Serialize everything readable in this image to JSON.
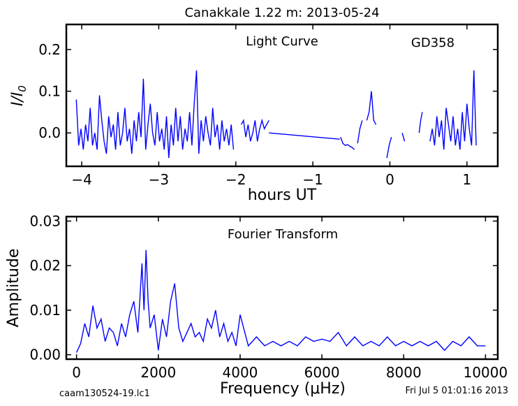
{
  "figure": {
    "title": "Canakkale 1.22 m:  2013-05-24",
    "footer_left": "caam130524-19.lc1",
    "footer_right": "Fri Jul  5 01:01:16 2013"
  },
  "colors": {
    "series": "#0000ff",
    "axes": "#000000",
    "background": "#ffffff"
  },
  "chart_data": [
    {
      "type": "line",
      "name": "light-curve",
      "annotation": "Light Curve",
      "star": "GD358",
      "xlabel": "hours UT",
      "ylabel": "I/I0",
      "xlim": [
        -4.2,
        1.4
      ],
      "ylim": [
        -0.08,
        0.26
      ],
      "xticks": [
        -4,
        -3,
        -2,
        -1,
        0,
        1
      ],
      "xtick_labels": [
        "−4",
        "−3",
        "−2",
        "−1",
        "0",
        "1"
      ],
      "yticks": [
        0.0,
        0.1,
        0.2
      ],
      "ytick_labels": [
        "0.0",
        "0.1",
        "0.2"
      ],
      "grid": false,
      "segments": [
        {
          "x": [
            -4.07,
            -4.04,
            -4.01,
            -3.98,
            -3.95,
            -3.92,
            -3.89,
            -3.86,
            -3.83,
            -3.8,
            -3.77,
            -3.74,
            -3.71,
            -3.68,
            -3.65,
            -3.62,
            -3.59,
            -3.56,
            -3.53,
            -3.5,
            -3.47,
            -3.44,
            -3.41,
            -3.38,
            -3.35,
            -3.32,
            -3.29,
            -3.26,
            -3.23,
            -3.2,
            -3.17,
            -3.14,
            -3.11,
            -3.08,
            -3.05,
            -3.02,
            -2.99,
            -2.96,
            -2.93,
            -2.9,
            -2.87,
            -2.84,
            -2.81,
            -2.78,
            -2.75,
            -2.72,
            -2.69,
            -2.66,
            -2.63,
            -2.6,
            -2.57,
            -2.54,
            -2.51,
            -2.48,
            -2.45,
            -2.42,
            -2.39,
            -2.36,
            -2.33,
            -2.3,
            -2.27,
            -2.24,
            -2.21,
            -2.18,
            -2.15,
            -2.12,
            -2.09,
            -2.06,
            -2.03
          ],
          "y": [
            0.08,
            -0.03,
            0.01,
            -0.04,
            0.02,
            -0.02,
            0.06,
            -0.03,
            0.0,
            -0.04,
            0.09,
            0.03,
            -0.02,
            -0.05,
            0.04,
            -0.01,
            0.02,
            -0.04,
            0.05,
            -0.03,
            0.0,
            0.06,
            -0.02,
            0.01,
            -0.05,
            0.03,
            -0.02,
            0.05,
            -0.01,
            0.13,
            -0.04,
            0.02,
            0.07,
            0.0,
            -0.03,
            0.05,
            -0.02,
            0.01,
            -0.04,
            0.04,
            -0.06,
            0.02,
            -0.03,
            0.06,
            -0.02,
            0.04,
            -0.04,
            0.01,
            -0.02,
            0.05,
            -0.03,
            0.07,
            0.15,
            -0.05,
            0.03,
            -0.02,
            0.04,
            0.0,
            -0.03,
            0.06,
            -0.01,
            0.02,
            -0.04,
            0.03,
            -0.02,
            0.01,
            -0.03,
            0.02,
            -0.04
          ]
        },
        {
          "x": [
            -1.93,
            -1.9,
            -1.87,
            -1.84,
            -1.81,
            -1.78,
            -1.75,
            -1.72,
            -1.69,
            -1.66,
            -1.63,
            -1.6,
            -1.57
          ],
          "y": [
            0.02,
            0.03,
            -0.01,
            0.02,
            -0.02,
            0.0,
            0.03,
            -0.02,
            0.01,
            0.03,
            0.01,
            0.02,
            0.03
          ]
        },
        {
          "x": [
            -1.57,
            -0.65
          ],
          "y": [
            0.0,
            -0.015
          ]
        },
        {
          "x": [
            -0.64,
            -0.61,
            -0.58,
            -0.55,
            -0.52,
            -0.49,
            -0.46
          ],
          "y": [
            -0.01,
            -0.025,
            -0.03,
            -0.028,
            -0.032,
            -0.035,
            -0.04
          ]
        },
        {
          "x": [
            -0.42,
            -0.39,
            -0.36
          ],
          "y": [
            -0.025,
            0.01,
            0.03
          ]
        },
        {
          "x": [
            -0.3,
            -0.27,
            -0.24,
            -0.21,
            -0.18
          ],
          "y": [
            0.03,
            0.05,
            0.1,
            0.03,
            0.02
          ]
        },
        {
          "x": [
            -0.04,
            -0.01,
            0.02
          ],
          "y": [
            -0.06,
            -0.03,
            -0.01
          ]
        },
        {
          "x": [
            0.16,
            0.19
          ],
          "y": [
            0.0,
            -0.02
          ]
        },
        {
          "x": [
            0.38,
            0.4,
            0.42
          ],
          "y": [
            0.0,
            0.03,
            0.05
          ]
        },
        {
          "x": [
            0.52,
            0.55,
            0.58,
            0.61,
            0.64,
            0.67,
            0.7,
            0.73,
            0.76,
            0.79,
            0.82,
            0.85,
            0.88,
            0.91,
            0.94,
            0.97,
            1.0,
            1.03,
            1.06,
            1.09,
            1.12
          ],
          "y": [
            -0.02,
            0.01,
            -0.03,
            0.04,
            -0.01,
            0.03,
            -0.04,
            0.06,
            0.02,
            -0.02,
            0.04,
            -0.03,
            0.01,
            -0.04,
            0.05,
            -0.02,
            0.07,
            0.01,
            -0.03,
            0.15,
            -0.03
          ]
        }
      ]
    },
    {
      "type": "line",
      "name": "fourier-transform",
      "annotation": "Fourier Transform",
      "xlabel": "Frequency (μHz)",
      "ylabel": "Amplitude",
      "xlim": [
        -250,
        10300
      ],
      "ylim": [
        -0.001,
        0.031
      ],
      "xticks": [
        0,
        2000,
        4000,
        6000,
        8000,
        10000
      ],
      "xtick_labels": [
        "0",
        "2000",
        "4000",
        "6000",
        "8000",
        "10000"
      ],
      "yticks": [
        0.0,
        0.01,
        0.02,
        0.03
      ],
      "ytick_labels": [
        "0.00",
        "0.01",
        "0.02",
        "0.03"
      ],
      "grid": false,
      "x": [
        0,
        100,
        200,
        300,
        400,
        500,
        600,
        700,
        800,
        900,
        1000,
        1100,
        1200,
        1300,
        1400,
        1500,
        1600,
        1650,
        1700,
        1750,
        1800,
        1900,
        2000,
        2100,
        2200,
        2300,
        2400,
        2500,
        2600,
        2700,
        2800,
        2900,
        3000,
        3100,
        3200,
        3300,
        3400,
        3500,
        3600,
        3700,
        3800,
        3900,
        4000,
        4200,
        4400,
        4600,
        4800,
        5000,
        5200,
        5400,
        5600,
        5800,
        6000,
        6200,
        6400,
        6600,
        6800,
        7000,
        7200,
        7400,
        7600,
        7800,
        8000,
        8200,
        8400,
        8600,
        8800,
        9000,
        9200,
        9400,
        9600,
        9800,
        10000
      ],
      "y": [
        0.0005,
        0.0025,
        0.007,
        0.004,
        0.011,
        0.006,
        0.008,
        0.003,
        0.006,
        0.005,
        0.002,
        0.007,
        0.004,
        0.009,
        0.012,
        0.005,
        0.0205,
        0.01,
        0.0235,
        0.012,
        0.006,
        0.009,
        0.001,
        0.008,
        0.004,
        0.012,
        0.016,
        0.006,
        0.003,
        0.005,
        0.007,
        0.004,
        0.005,
        0.003,
        0.008,
        0.006,
        0.01,
        0.004,
        0.007,
        0.003,
        0.005,
        0.002,
        0.009,
        0.002,
        0.004,
        0.002,
        0.003,
        0.002,
        0.003,
        0.002,
        0.004,
        0.003,
        0.0035,
        0.003,
        0.005,
        0.002,
        0.004,
        0.002,
        0.003,
        0.002,
        0.004,
        0.002,
        0.003,
        0.002,
        0.003,
        0.002,
        0.003,
        0.001,
        0.003,
        0.002,
        0.004,
        0.002,
        0.002
      ]
    }
  ]
}
